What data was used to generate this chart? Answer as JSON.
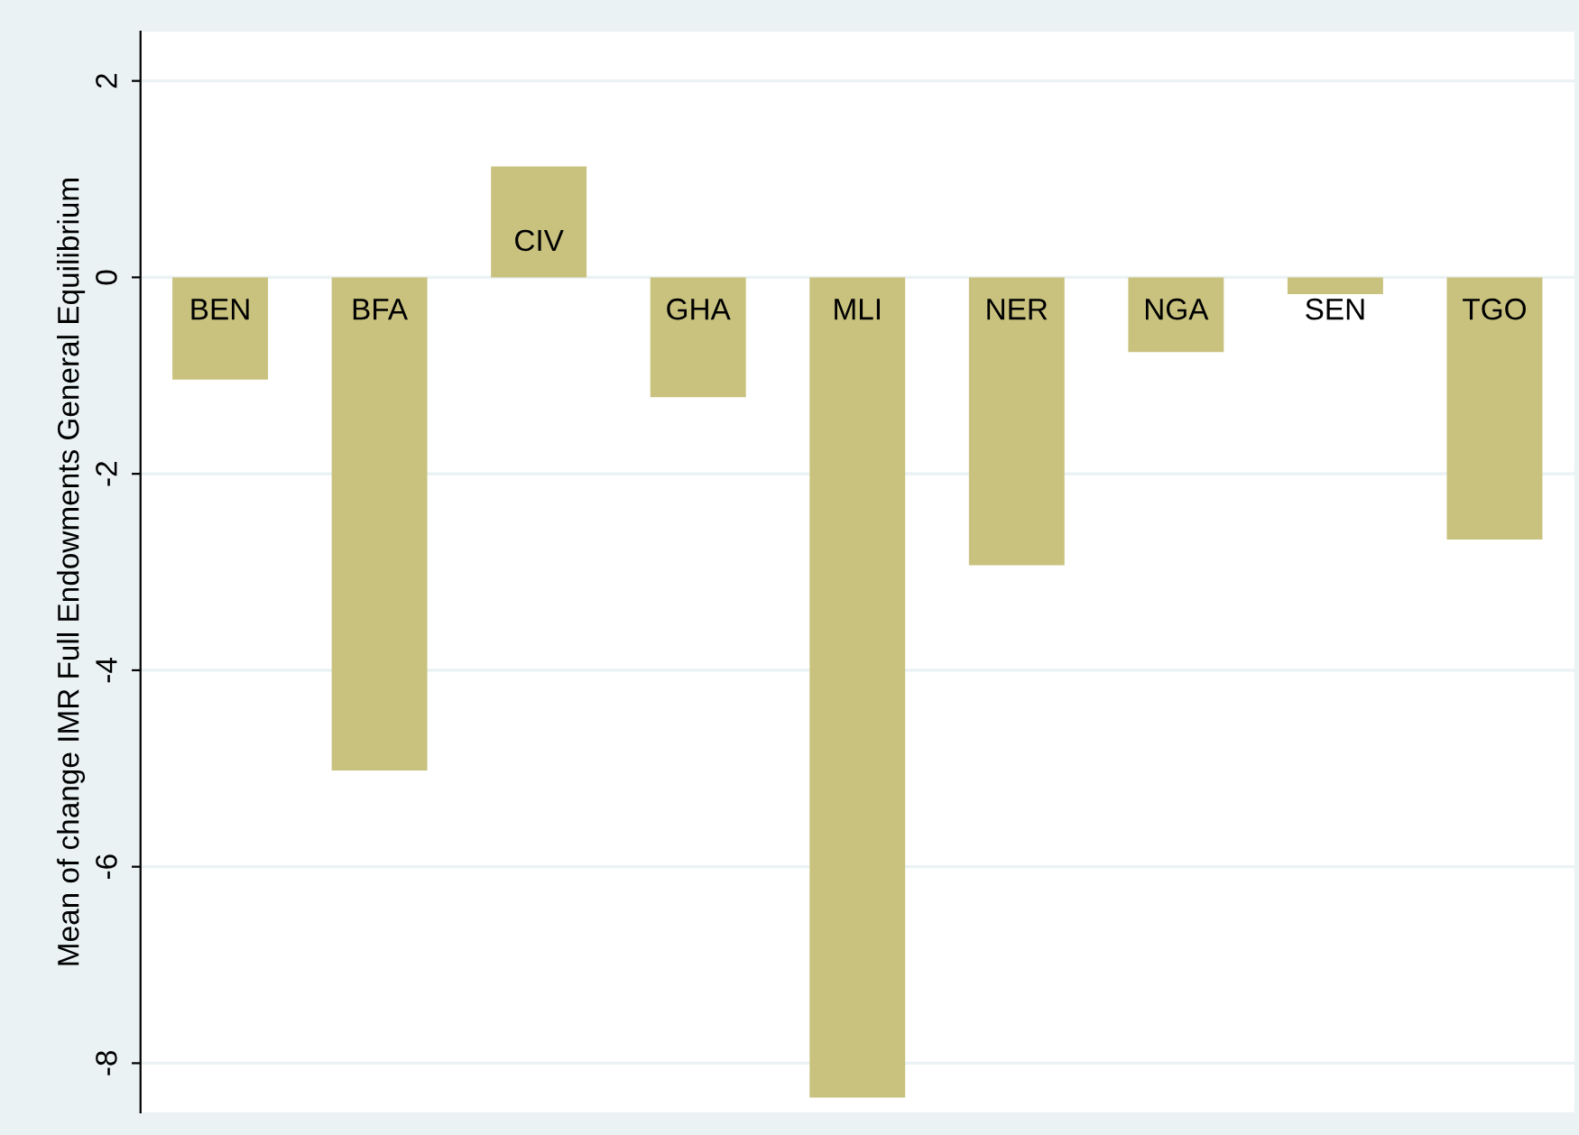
{
  "chart_data": {
    "type": "bar",
    "ylabel": "Mean of change IMR Full Endowments General Equilibrium",
    "categories": [
      "BEN",
      "BFA",
      "CIV",
      "GHA",
      "MLI",
      "NER",
      "NGA",
      "SEN",
      "TGO"
    ],
    "values": [
      -1.04,
      -5.02,
      1.13,
      -1.22,
      -8.35,
      -2.93,
      -0.76,
      -0.17,
      -2.67
    ],
    "color": "#c9c27f",
    "ylim": [
      -8.5,
      2.5
    ],
    "yticks": [
      -8,
      -6,
      -4,
      -2,
      0,
      2
    ],
    "grid": "y",
    "tick_labels": "y"
  }
}
